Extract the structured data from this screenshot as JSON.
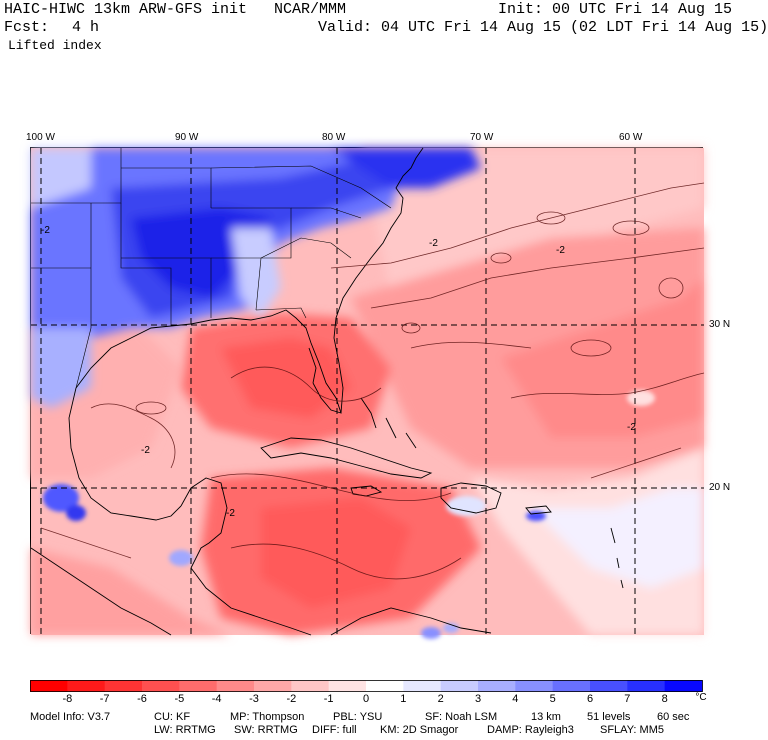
{
  "header": {
    "model_title": "HAIC-HIWC 13km ARW-GFS init",
    "org": "NCAR/MMM",
    "init": "Init: 00 UTC Fri 14 Aug 15",
    "fcst_label": "Fcst:",
    "fcst_value": "4 h",
    "valid": "Valid: 04 UTC Fri 14 Aug 15 (02 LDT Fri 14 Aug 15)",
    "field": "Lifted index"
  },
  "axes": {
    "lon_labels": [
      "100 W",
      "90 W",
      "80 W",
      "70 W",
      "60 W"
    ],
    "lat_labels": [
      "30 N",
      "20 N"
    ]
  },
  "contour_labels": [
    "-2",
    "-2",
    "-2",
    "-2",
    "-2",
    "-2"
  ],
  "colorbar": {
    "unit": "°C",
    "ticks": [
      "-8",
      "-7",
      "-6",
      "-5",
      "-4",
      "-3",
      "-2",
      "-1",
      "0",
      "1",
      "2",
      "3",
      "4",
      "5",
      "6",
      "7",
      "8"
    ],
    "colors": [
      "#ff0000",
      "#ff1a1a",
      "#ff3434",
      "#ff5050",
      "#ff6c6c",
      "#ff8a8a",
      "#ffa8a8",
      "#ffc6c6",
      "#ffe4e4",
      "#ffffff",
      "#e6e8ff",
      "#c8ccff",
      "#a8aeff",
      "#8890ff",
      "#6870ff",
      "#4850ff",
      "#2830ff",
      "#0808ff"
    ]
  },
  "model_info": {
    "line1": [
      "Model Info: V3.7",
      "CU: KF",
      "MP: Thompson",
      "PBL: YSU",
      "SF: Noah LSM",
      "13 km",
      "51 levels",
      "60 sec"
    ],
    "line2": [
      "LW: RRTMG",
      "SW: RRTMG",
      "DIFF: full",
      "KM: 2D Smagor",
      "DAMP: Rayleigh3",
      "SFLAY: MM5"
    ]
  }
}
